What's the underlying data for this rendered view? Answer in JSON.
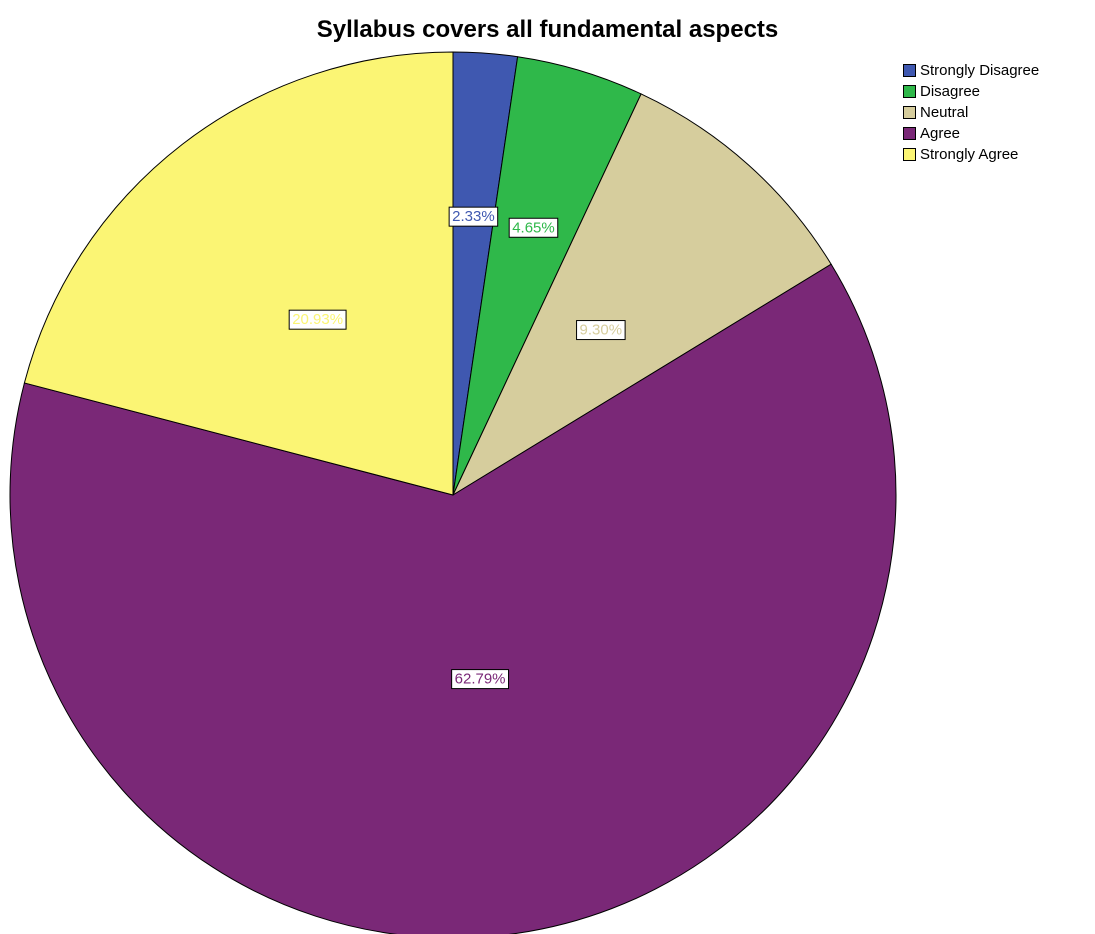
{
  "chart_data": {
    "type": "pie",
    "title": "Syllabus covers all fundamental aspects",
    "categories": [
      "Strongly Disagree",
      "Disagree",
      "Neutral",
      "Agree",
      "Strongly Agree"
    ],
    "values": [
      2.33,
      4.65,
      9.3,
      62.79,
      20.93
    ],
    "data_labels": [
      "2.33%",
      "4.65%",
      "9.30%",
      "62.79%",
      "20.93%"
    ],
    "colors": [
      "#3f58b0",
      "#2fb84a",
      "#d6cd9d",
      "#7a2877",
      "#fbf574"
    ],
    "label_colors": [
      "#3f58b0",
      "#2fb84a",
      "#d6cd9d",
      "#7a2877",
      "#fbf574"
    ],
    "legend_position": "top-right",
    "start_angle": "12 o'clock",
    "direction": "clockwise"
  }
}
